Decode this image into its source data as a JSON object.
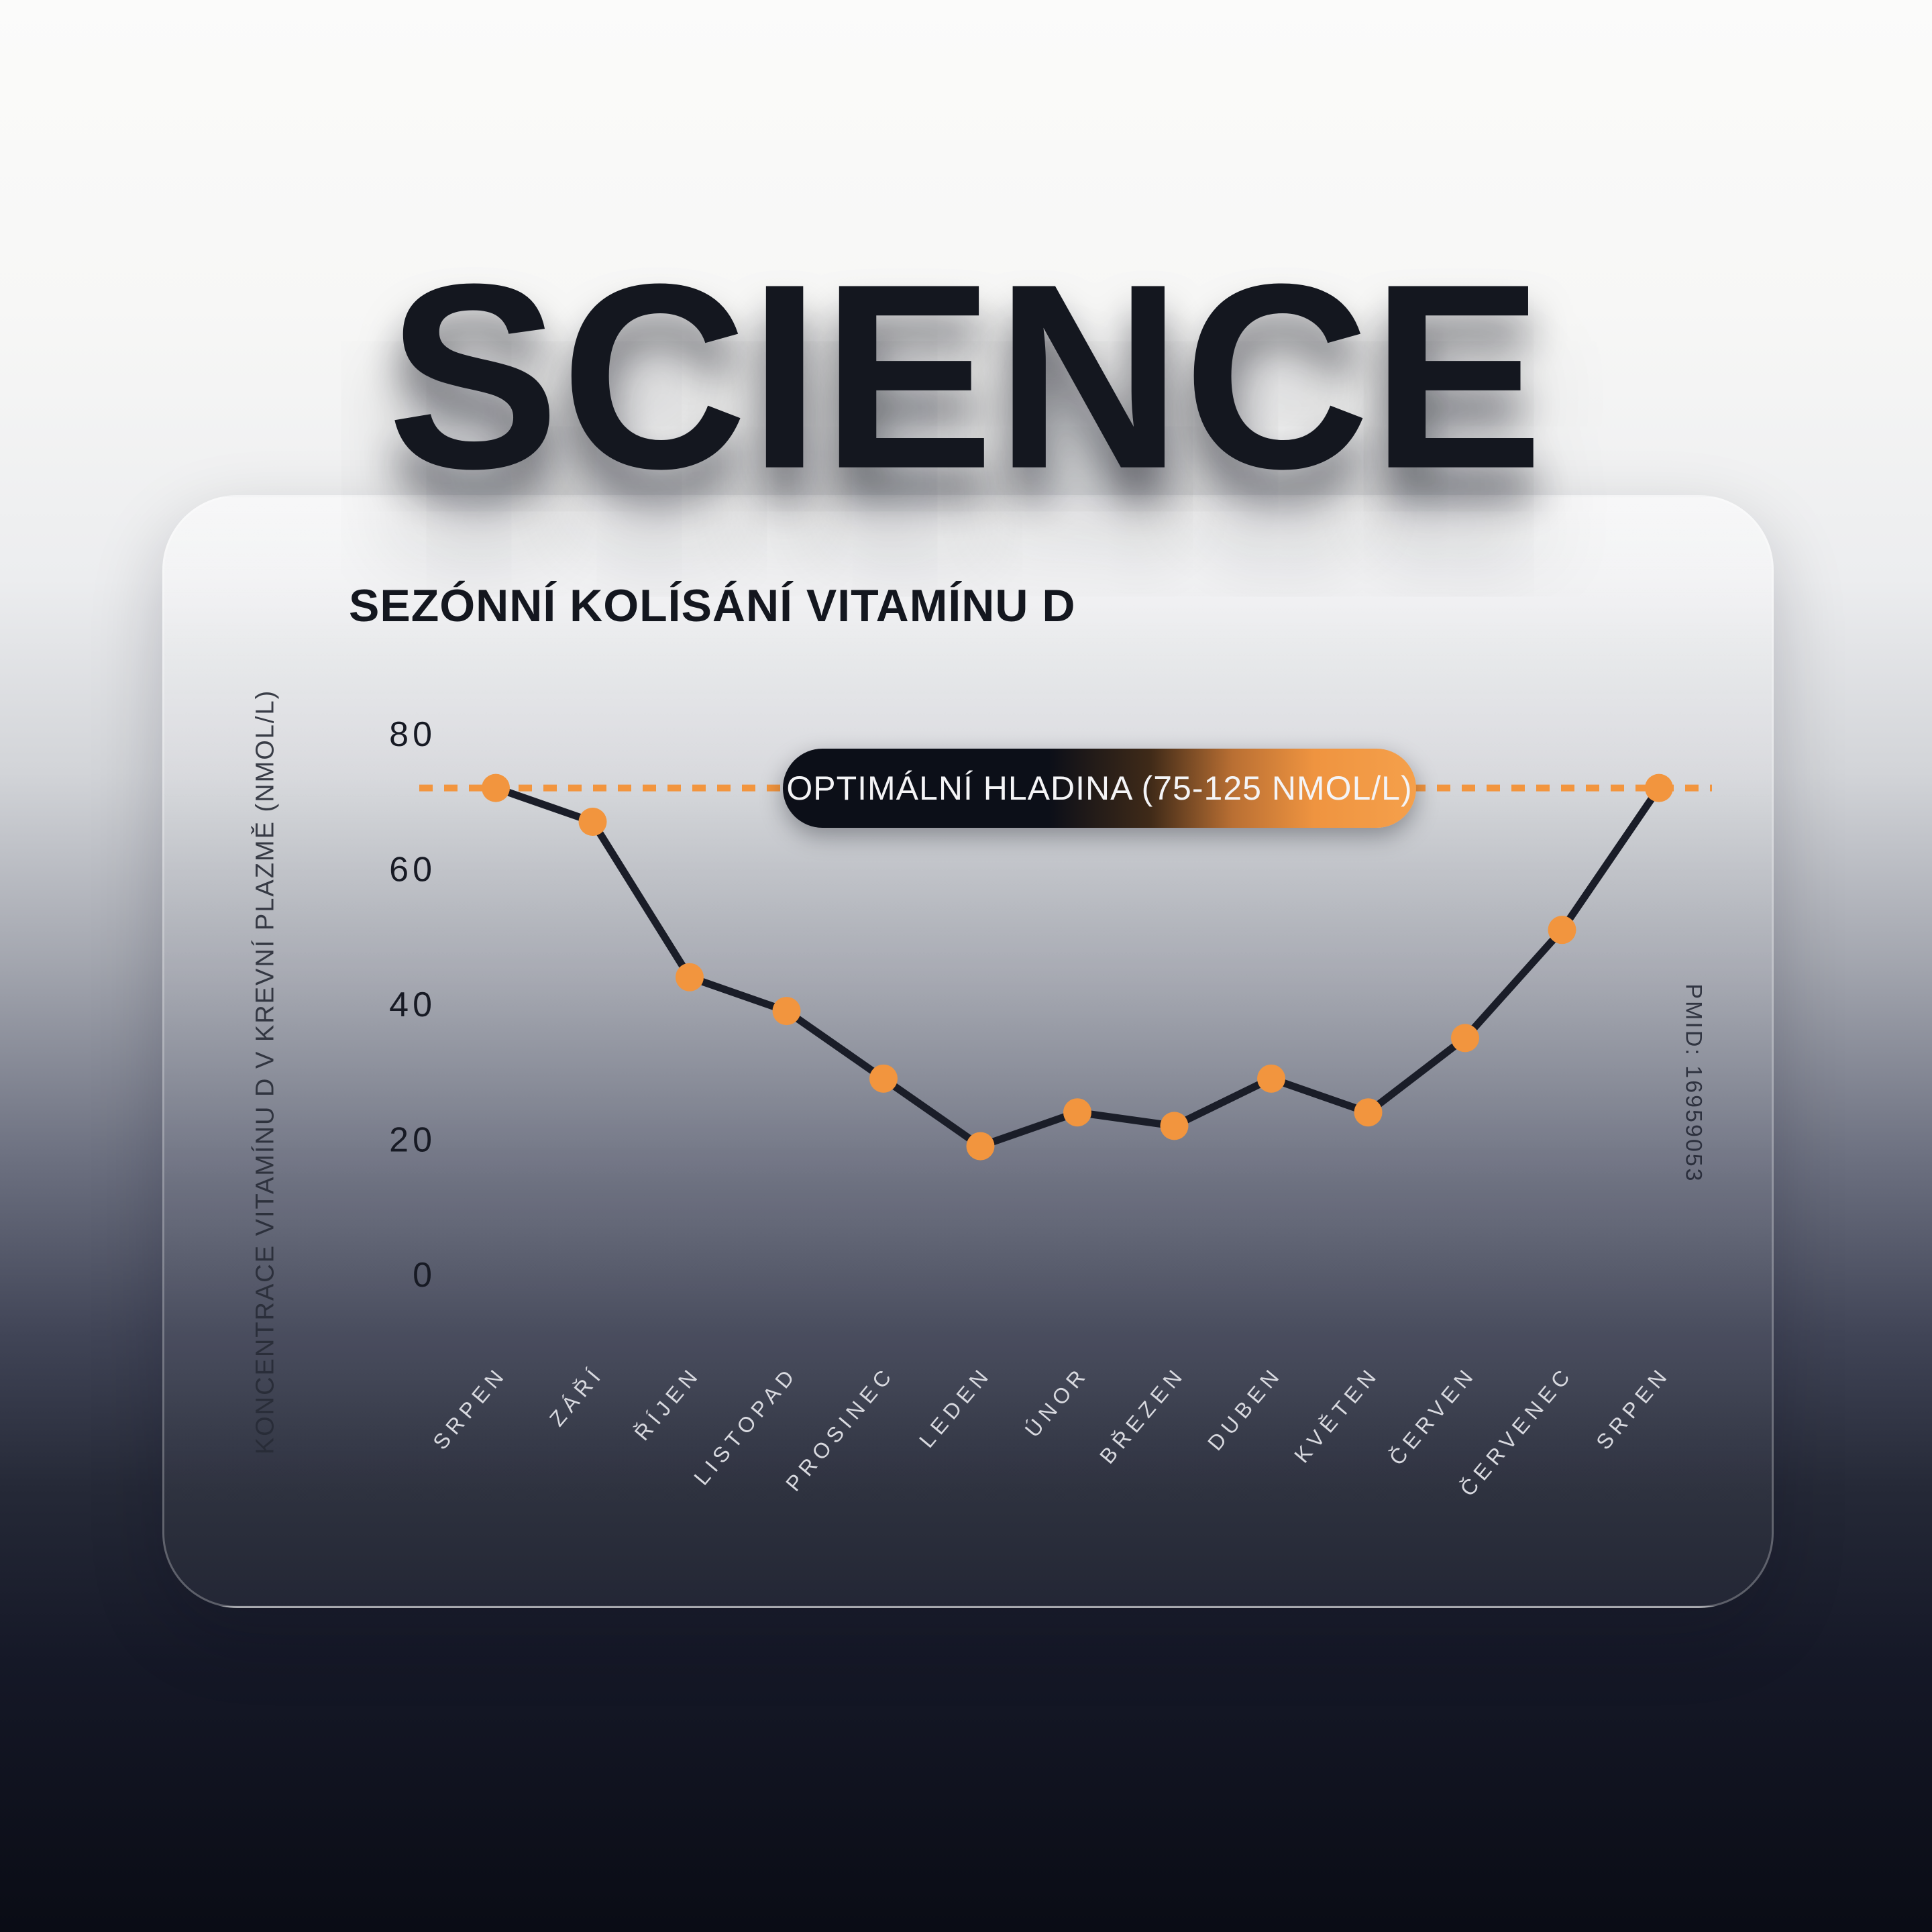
{
  "header": {
    "title": "SCIENCE"
  },
  "card": {
    "title": "SEZÓNNÍ KOLÍSÁNÍ VITAMÍNU D",
    "source_note": "PMID: 16959053"
  },
  "chart_data": {
    "type": "line",
    "title": "SEZÓNNÍ KOLÍSÁNÍ VITAMÍNU D",
    "categories": [
      "SRPEN",
      "ZÁŘÍ",
      "ŘÍJEN",
      "LISTOPAD",
      "PROSINEC",
      "LEDEN",
      "ÚNOR",
      "BŘEZEN",
      "DUBEN",
      "KVĚTEN",
      "ČERVEN",
      "ČERVENEC",
      "SRPEN"
    ],
    "values": [
      72,
      67,
      44,
      39,
      29,
      19,
      24,
      22,
      29,
      24,
      35,
      51,
      72
    ],
    "xlabel": "",
    "ylabel": "KONCENTRACE VITAMÍNU D V KREVNÍ PLAZMĚ (NMOL/L)",
    "yticks": [
      80,
      60,
      40,
      20,
      0
    ],
    "ylim": [
      0,
      88
    ],
    "grid": false,
    "legend_position": "none",
    "x_tick_rotation": -50,
    "reference_line": {
      "value": 72,
      "label": "OPTIMÁLNÍ HLADINA (75-125 NMOL/L)",
      "style": "dashed"
    },
    "colors": {
      "accent": "#F2953E",
      "line": "#1A1D28",
      "dark_text": "#14171F",
      "x_label_text": "#D8D9DF"
    }
  }
}
